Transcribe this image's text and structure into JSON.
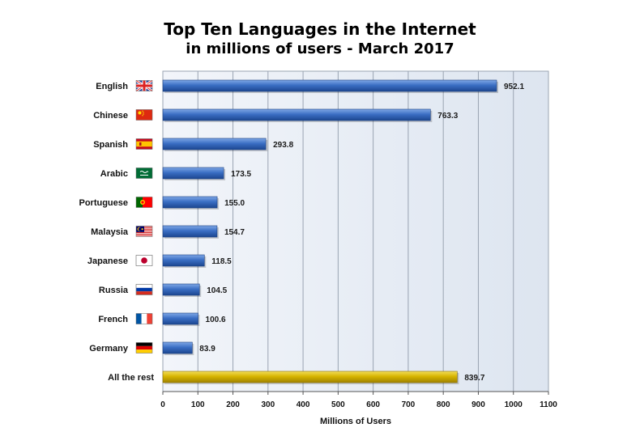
{
  "chart_data": {
    "type": "bar",
    "orientation": "horizontal",
    "title": "Top Ten Languages in the Internet",
    "subtitle": "in millions of users - March 2017",
    "xlabel": "Millions of Users",
    "ylabel": "",
    "xlim": [
      0,
      1100
    ],
    "xticks": [
      0,
      100,
      200,
      300,
      400,
      500,
      600,
      700,
      800,
      900,
      1000,
      1100
    ],
    "grid": true,
    "categories": [
      "English",
      "Chinese",
      "Spanish",
      "Arabic",
      "Portuguese",
      "Malaysia",
      "Japanese",
      "Russia",
      "French",
      "Germany",
      "All the rest"
    ],
    "values": [
      952.1,
      763.3,
      293.8,
      173.5,
      155.0,
      154.7,
      118.5,
      104.5,
      100.6,
      83.9,
      839.7
    ],
    "value_labels": [
      "952.1",
      "763.3",
      "293.8",
      "173.5",
      "155.0",
      "154.7",
      "118.5",
      "104.5",
      "100.6",
      "83.9",
      "839.7"
    ],
    "flags": [
      "uk-flag-icon",
      "china-flag-icon",
      "spain-flag-icon",
      "saudi-arabia-flag-icon",
      "portugal-flag-icon",
      "malaysia-flag-icon",
      "japan-flag-icon",
      "russia-flag-icon",
      "france-flag-icon",
      "germany-flag-icon",
      ""
    ],
    "bar_color": "#2f64b3",
    "highlight_color": "#d4b000"
  }
}
